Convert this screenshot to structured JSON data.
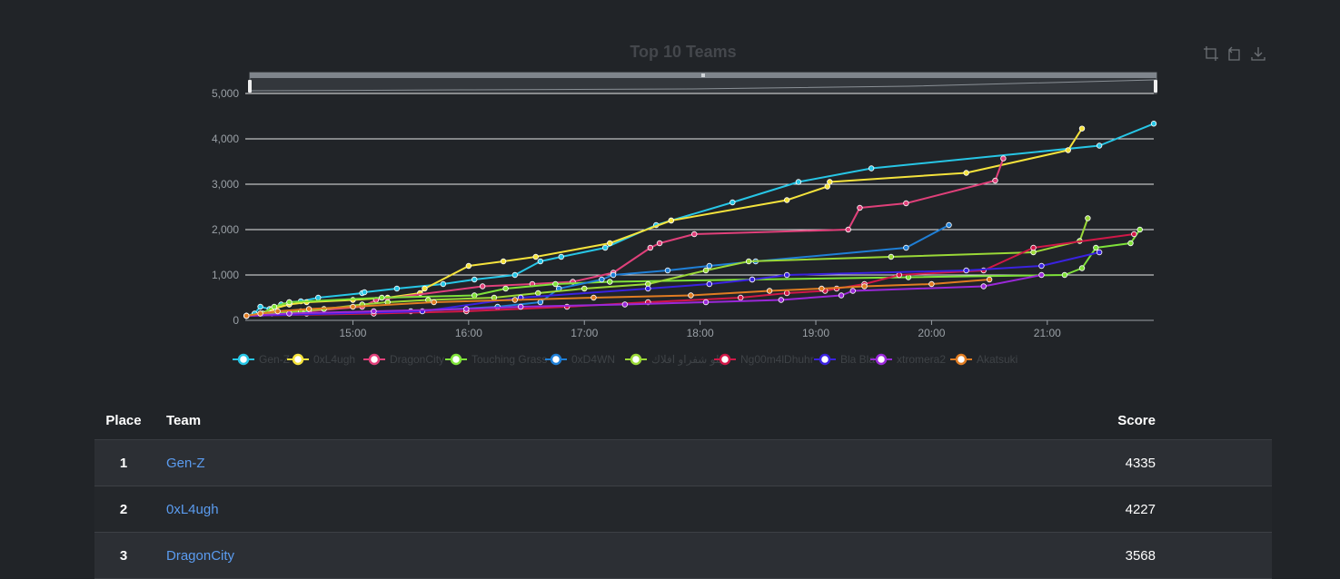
{
  "chart_data": {
    "type": "line",
    "title": "Top 10 Teams",
    "xlabel": "",
    "ylabel": "",
    "x_ticks": [
      "15:00",
      "16:00",
      "17:00",
      "18:00",
      "19:00",
      "20:00",
      "21:00"
    ],
    "y_ticks": [
      "0",
      "1,000",
      "2,000",
      "3,000",
      "4,000",
      "5,000"
    ],
    "xlim": [
      14.07,
      21.92
    ],
    "ylim": [
      0,
      5000
    ],
    "grid": true,
    "legend_position": "bottom",
    "series": [
      {
        "name": "Gen-Z",
        "color": "#27c6e6",
        "points": [
          [
            14.08,
            100
          ],
          [
            14.15,
            150
          ],
          [
            14.2,
            300
          ],
          [
            14.28,
            250
          ],
          [
            14.38,
            350
          ],
          [
            14.45,
            400
          ],
          [
            14.55,
            420
          ],
          [
            14.7,
            500
          ],
          [
            15.08,
            600
          ],
          [
            15.1,
            620
          ],
          [
            15.38,
            700
          ],
          [
            15.78,
            800
          ],
          [
            16.05,
            900
          ],
          [
            16.4,
            1000
          ],
          [
            16.62,
            1300
          ],
          [
            16.8,
            1400
          ],
          [
            17.18,
            1600
          ],
          [
            17.62,
            2100
          ],
          [
            17.75,
            2200
          ],
          [
            18.28,
            2600
          ],
          [
            18.85,
            3050
          ],
          [
            19.48,
            3350
          ],
          [
            21.45,
            3850
          ],
          [
            21.92,
            4335
          ]
        ]
      },
      {
        "name": "0xL4ugh",
        "color": "#f5e33c",
        "points": [
          [
            14.08,
            100
          ],
          [
            14.2,
            150
          ],
          [
            14.3,
            250
          ],
          [
            14.45,
            350
          ],
          [
            14.6,
            400
          ],
          [
            15.0,
            450
          ],
          [
            15.3,
            500
          ],
          [
            15.58,
            600
          ],
          [
            15.62,
            700
          ],
          [
            16.0,
            1200
          ],
          [
            16.3,
            1300
          ],
          [
            16.58,
            1400
          ],
          [
            17.22,
            1700
          ],
          [
            17.75,
            2200
          ],
          [
            18.75,
            2650
          ],
          [
            19.1,
            2950
          ],
          [
            19.12,
            3050
          ],
          [
            20.3,
            3250
          ],
          [
            21.18,
            3750
          ],
          [
            21.3,
            4227
          ]
        ]
      },
      {
        "name": "DragonCity",
        "color": "#e0407a",
        "points": [
          [
            14.08,
            100
          ],
          [
            14.3,
            150
          ],
          [
            14.62,
            200
          ],
          [
            15.08,
            300
          ],
          [
            15.2,
            450
          ],
          [
            16.12,
            750
          ],
          [
            16.55,
            800
          ],
          [
            16.9,
            850
          ],
          [
            17.25,
            1050
          ],
          [
            17.57,
            1600
          ],
          [
            17.65,
            1700
          ],
          [
            17.95,
            1900
          ],
          [
            19.28,
            2000
          ],
          [
            19.38,
            2480
          ],
          [
            19.78,
            2580
          ],
          [
            20.55,
            3080
          ],
          [
            20.62,
            3568
          ]
        ]
      },
      {
        "name": "Touching Grass",
        "color": "#7fe23a",
        "points": [
          [
            14.08,
            100
          ],
          [
            14.22,
            150
          ],
          [
            14.32,
            300
          ],
          [
            14.45,
            400
          ],
          [
            15.25,
            500
          ],
          [
            16.05,
            550
          ],
          [
            16.32,
            700
          ],
          [
            16.75,
            800
          ],
          [
            17.22,
            850
          ],
          [
            18.45,
            900
          ],
          [
            19.8,
            950
          ],
          [
            21.15,
            1000
          ],
          [
            21.3,
            1150
          ],
          [
            21.42,
            1600
          ],
          [
            21.72,
            1700
          ],
          [
            21.8,
            2000
          ]
        ]
      },
      {
        "name": "0xD4WN",
        "color": "#1f7fd6",
        "points": [
          [
            14.08,
            100
          ],
          [
            14.6,
            150
          ],
          [
            15.5,
            200
          ],
          [
            16.25,
            300
          ],
          [
            16.62,
            400
          ],
          [
            16.78,
            700
          ],
          [
            17.15,
            900
          ],
          [
            17.25,
            1000
          ],
          [
            17.72,
            1100
          ],
          [
            18.08,
            1200
          ],
          [
            18.48,
            1300
          ],
          [
            19.78,
            1600
          ],
          [
            20.15,
            2100
          ]
        ]
      },
      {
        "name": "پلو شفراو افلاك",
        "color": "#9ad837",
        "points": [
          [
            14.08,
            100
          ],
          [
            14.55,
            200
          ],
          [
            14.75,
            250
          ],
          [
            15.08,
            350
          ],
          [
            15.3,
            400
          ],
          [
            15.65,
            450
          ],
          [
            16.22,
            500
          ],
          [
            16.6,
            600
          ],
          [
            17.0,
            700
          ],
          [
            17.55,
            800
          ],
          [
            18.05,
            1100
          ],
          [
            18.42,
            1300
          ],
          [
            19.65,
            1400
          ],
          [
            20.88,
            1500
          ],
          [
            21.28,
            1750
          ],
          [
            21.35,
            2250
          ]
        ]
      },
      {
        "name": "Ng00m4lDhuhr",
        "color": "#d01848",
        "points": [
          [
            14.08,
            100
          ],
          [
            15.18,
            150
          ],
          [
            15.98,
            200
          ],
          [
            16.85,
            300
          ],
          [
            17.55,
            400
          ],
          [
            18.35,
            500
          ],
          [
            18.75,
            600
          ],
          [
            19.08,
            650
          ],
          [
            19.18,
            700
          ],
          [
            19.42,
            800
          ],
          [
            19.72,
            1000
          ],
          [
            20.45,
            1100
          ],
          [
            20.88,
            1600
          ],
          [
            21.75,
            1900
          ]
        ]
      },
      {
        "name": "Bla Bla",
        "color": "#3a22e0",
        "points": [
          [
            14.08,
            100
          ],
          [
            15.6,
            200
          ],
          [
            16.45,
            500
          ],
          [
            17.55,
            700
          ],
          [
            18.08,
            800
          ],
          [
            18.45,
            900
          ],
          [
            18.75,
            1000
          ],
          [
            20.3,
            1100
          ],
          [
            20.95,
            1200
          ],
          [
            21.45,
            1500
          ]
        ]
      },
      {
        "name": "xtromera2",
        "color": "#9a28d8",
        "points": [
          [
            14.08,
            100
          ],
          [
            14.45,
            150
          ],
          [
            15.18,
            200
          ],
          [
            15.98,
            250
          ],
          [
            16.45,
            300
          ],
          [
            17.35,
            350
          ],
          [
            18.05,
            400
          ],
          [
            18.7,
            450
          ],
          [
            19.22,
            550
          ],
          [
            19.32,
            650
          ],
          [
            20.45,
            750
          ],
          [
            20.95,
            1000
          ]
        ]
      },
      {
        "name": "Akatsuki",
        "color": "#e07c22",
        "points": [
          [
            14.08,
            100
          ],
          [
            14.2,
            150
          ],
          [
            14.35,
            200
          ],
          [
            14.62,
            250
          ],
          [
            15.0,
            300
          ],
          [
            15.7,
            400
          ],
          [
            16.4,
            450
          ],
          [
            17.08,
            500
          ],
          [
            17.92,
            550
          ],
          [
            18.6,
            650
          ],
          [
            19.05,
            700
          ],
          [
            19.42,
            750
          ],
          [
            20.0,
            800
          ],
          [
            20.5,
            900
          ]
        ]
      }
    ]
  },
  "scoreboard": {
    "headers": {
      "place": "Place",
      "team": "Team",
      "score": "Score"
    },
    "rows": [
      {
        "place": "1",
        "team": "Gen-Z",
        "score": "4335"
      },
      {
        "place": "2",
        "team": "0xL4ugh",
        "score": "4227"
      },
      {
        "place": "3",
        "team": "DragonCity",
        "score": "3568"
      }
    ]
  },
  "toolbox": {
    "icons": [
      "zoom-icon",
      "restore-icon",
      "download-icon"
    ]
  }
}
